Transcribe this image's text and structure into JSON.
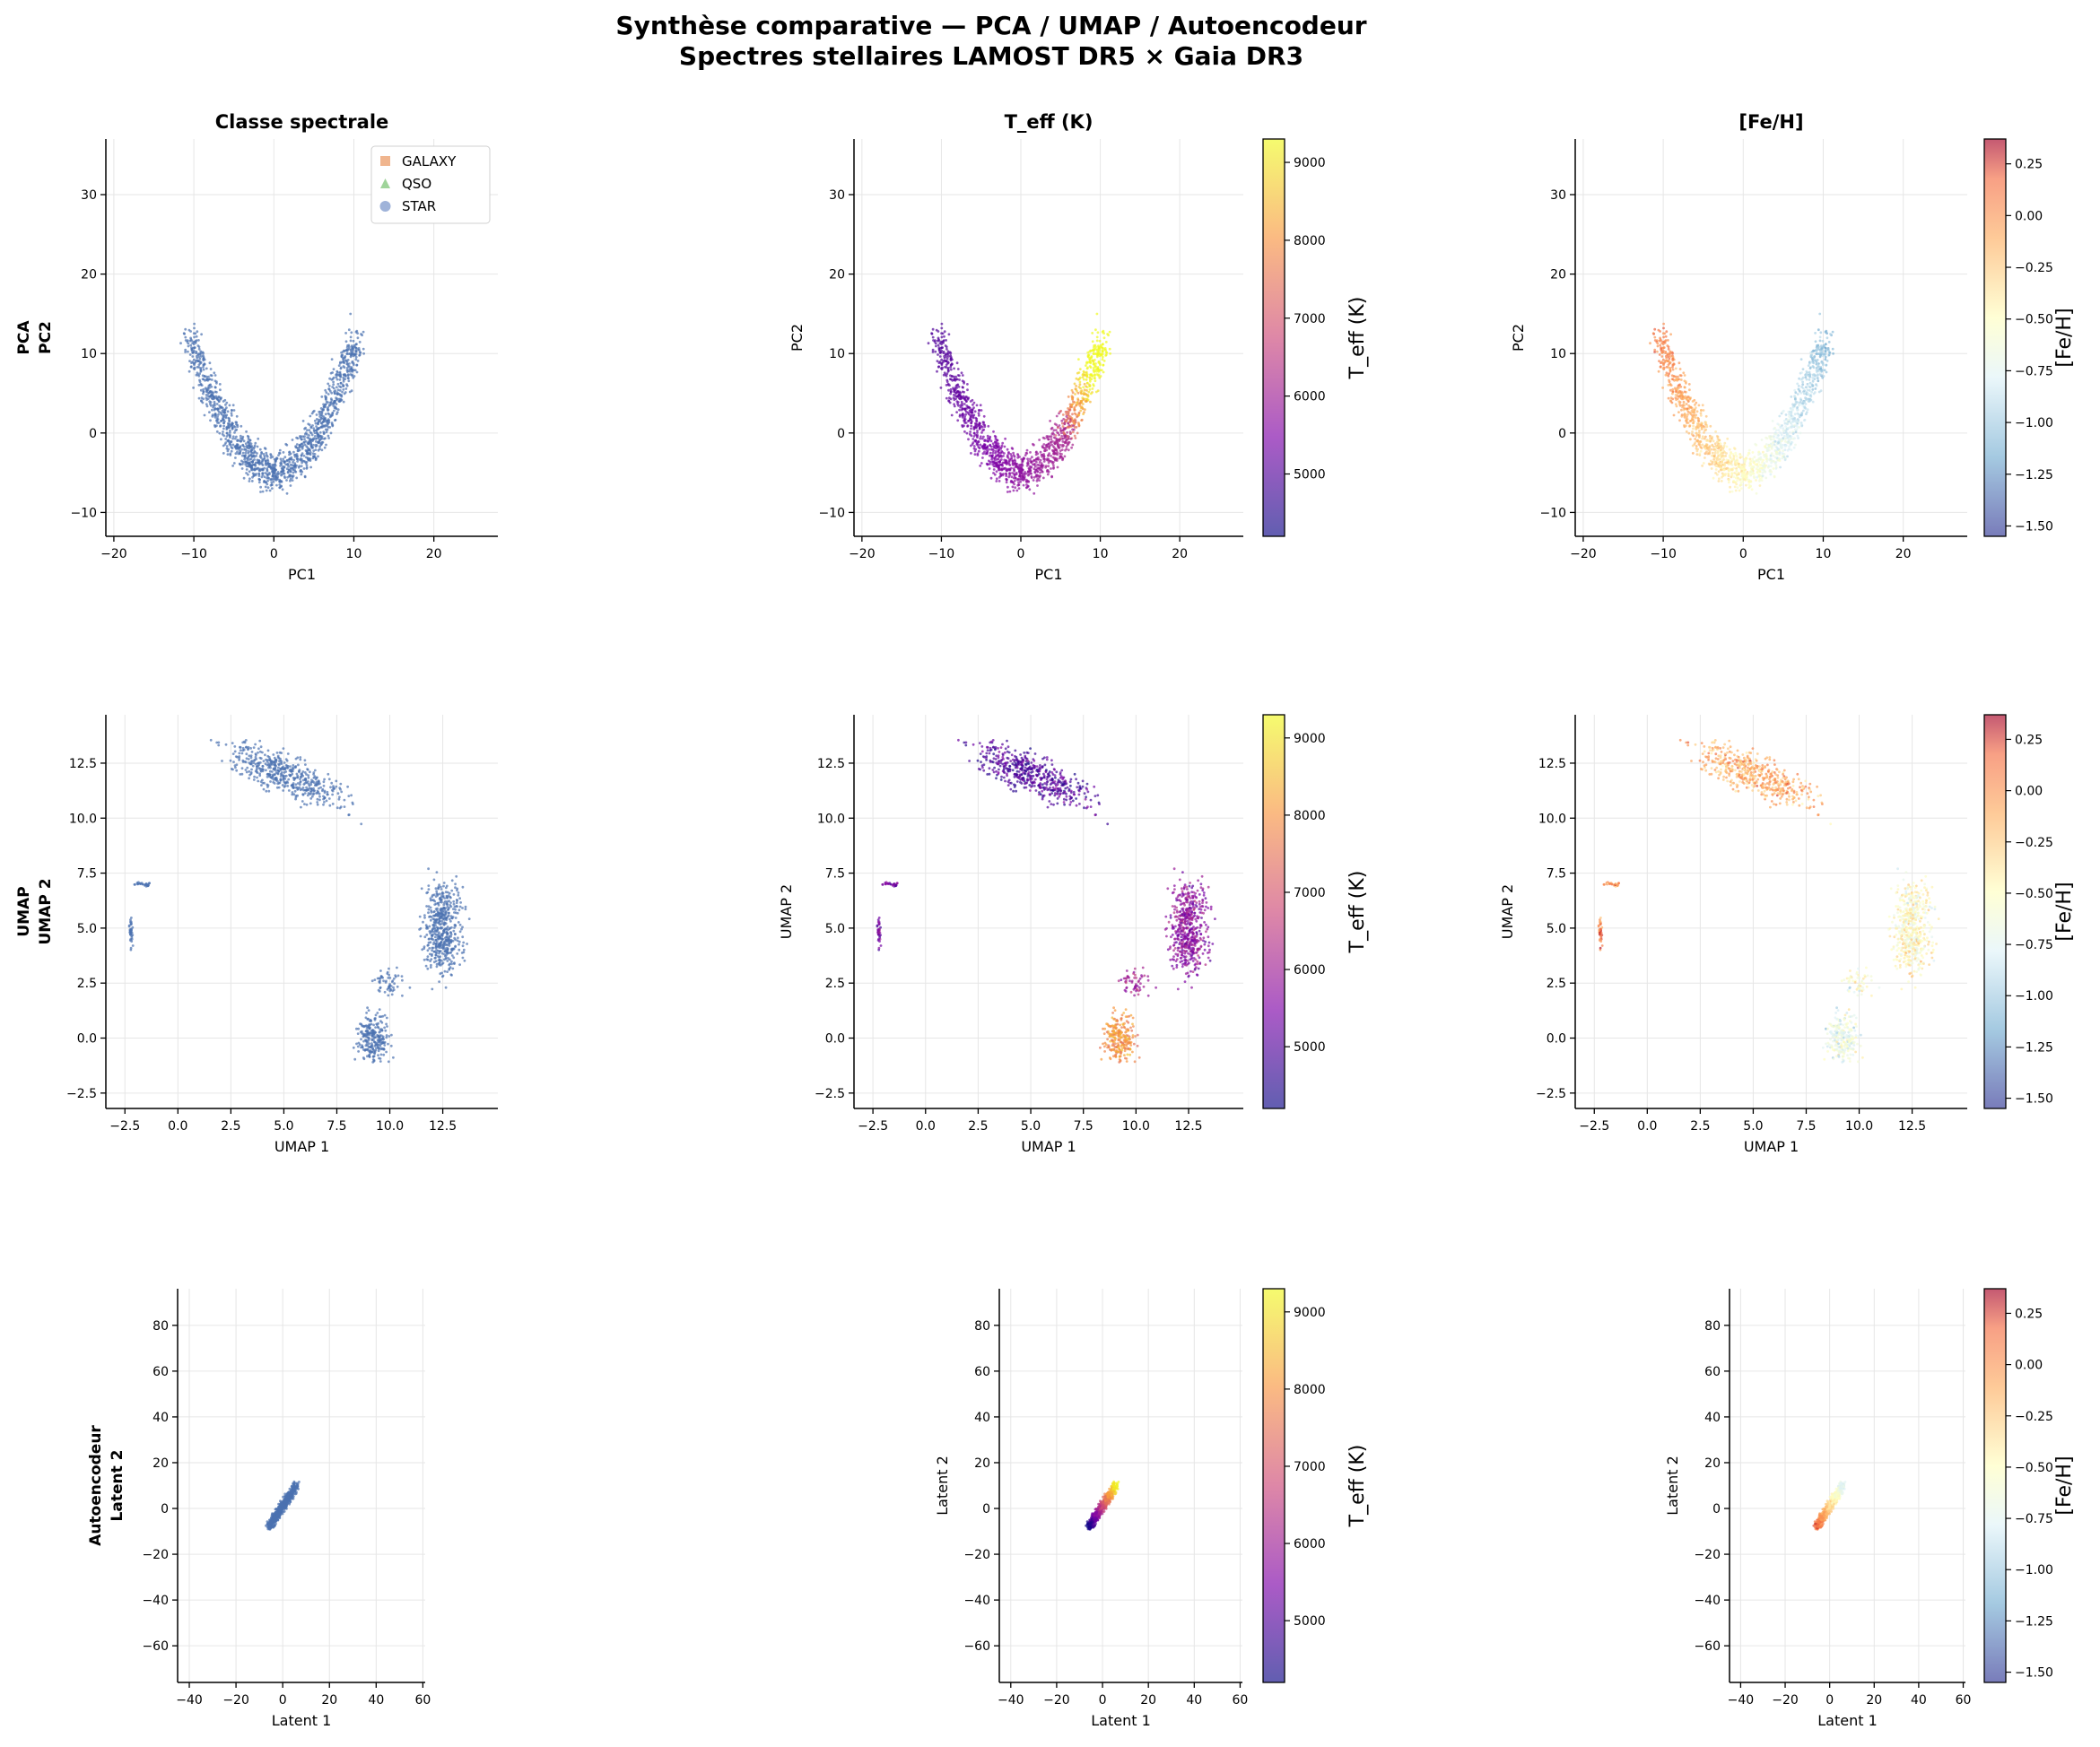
{
  "figure": {
    "title_line1": "Synthèse comparative — PCA / UMAP / Autoencodeur",
    "title_line2": "Spectres stellaires LAMOST DR5 × Gaia DR3"
  },
  "column_titles": [
    "Classe spectrale",
    "T_eff (K)",
    "[Fe/H]"
  ],
  "row_labels": [
    {
      "method": "PCA",
      "axis": "PC2"
    },
    {
      "method": "UMAP",
      "axis": "UMAP 2"
    },
    {
      "method": "Autoencodeur",
      "axis": "Latent 2"
    }
  ],
  "legend": {
    "placement": "top-right",
    "entries": [
      {
        "label": "GALAXY",
        "marker": "square",
        "color": "#f0b58e"
      },
      {
        "label": "QSO",
        "marker": "triangle",
        "color": "#9fd49a"
      },
      {
        "label": "STAR",
        "marker": "circle",
        "color": "#9fb3d9"
      }
    ]
  },
  "colorbars": {
    "teff": {
      "label": "T_eff (K)",
      "range": [
        4200,
        9300
      ],
      "ticks": [
        "5000",
        "6000",
        "7000",
        "8000",
        "9000"
      ],
      "cmap": "plasma"
    },
    "feh": {
      "label": "[Fe/H]",
      "range": [
        -1.55,
        0.37
      ],
      "ticks": [
        "0.25",
        "0.00",
        "−0.25",
        "−0.50",
        "−0.75",
        "−1.00",
        "−1.25",
        "−1.50"
      ],
      "cmap": "RdYlBu_r"
    }
  },
  "colors": {
    "star": "#4c72b0",
    "grid": "#e6e6e6"
  },
  "chart_data": [
    {
      "type": "scatter",
      "method": "PCA",
      "xlabel": "PC1",
      "ylabel": "PC2",
      "xlim": [
        -21,
        28
      ],
      "ylim": [
        -13,
        37
      ],
      "xticks": [
        "−20",
        "−10",
        "0",
        "10",
        "20"
      ],
      "yticks": [
        "−10",
        "0",
        "10",
        "20",
        "30"
      ],
      "grid": true
    },
    {
      "type": "scatter",
      "method": "UMAP",
      "xlabel": "UMAP 1",
      "ylabel": "UMAP 2",
      "xlim": [
        -3.4,
        15.1
      ],
      "ylim": [
        -3.2,
        14.7
      ],
      "xticks": [
        "−2.5",
        "0.0",
        "2.5",
        "5.0",
        "7.5",
        "10.0",
        "12.5"
      ],
      "yticks": [
        "−2.5",
        "0.0",
        "2.5",
        "5.0",
        "7.5",
        "10.0",
        "12.5"
      ],
      "grid": true
    },
    {
      "type": "scatter",
      "method": "Autoencodeur",
      "xlabel": "Latent 1",
      "ylabel": "Latent 2",
      "xlim": [
        -45,
        61
      ],
      "ylim": [
        -76,
        96
      ],
      "xticks": [
        "−40",
        "−20",
        "0",
        "20",
        "40",
        "60"
      ],
      "yticks": [
        "−60",
        "−40",
        "−20",
        "0",
        "20",
        "40",
        "60",
        "80"
      ],
      "grid": true
    }
  ]
}
